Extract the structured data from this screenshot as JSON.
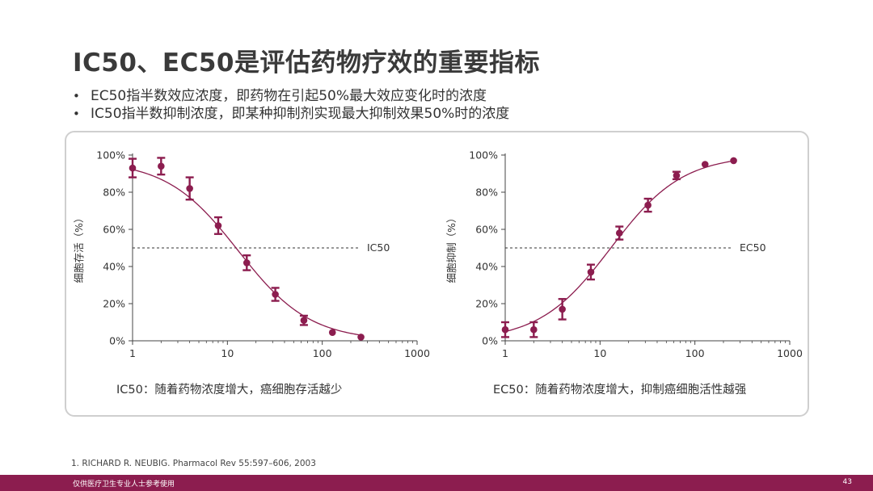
{
  "slide": {
    "title": "IC50、EC50是评估药物疗效的重要指标",
    "bullets": [
      "EC50指半数效应浓度，即药物在引起50%最大效应变化时的浓度",
      "IC50指半数抑制浓度，即某种抑制剂实现最大抑制效果50%时的浓度"
    ],
    "bullet_symbol": "•",
    "reference": "1.   RICHARD R. NEUBIG. Pharmacol Rev 55:597–606, 2003",
    "footer": "仅供医疗卫生专业人士参考使用",
    "page_number": "43"
  },
  "colors": {
    "accent": "#8c1d4f",
    "curve": "#8c1d4f",
    "frame": "#cfcfcf",
    "axis": "#444444"
  },
  "chart_data": [
    {
      "type": "scatter",
      "xscale": "log",
      "xlim": [
        1,
        1000
      ],
      "ylim": [
        0,
        100
      ],
      "xticks": [
        1,
        10,
        100,
        1000
      ],
      "xticklabels": [
        "1",
        "10",
        "100",
        "1000"
      ],
      "yticks": [
        0,
        20,
        40,
        60,
        80,
        100
      ],
      "yticklabels": [
        "0%",
        "20%",
        "40%",
        "60%",
        "80%",
        "100%"
      ],
      "ylabel": "细胞存活（%）",
      "reference_line": {
        "y": 50,
        "label": "IC50",
        "style": "dashed"
      },
      "caption": "IC50：随着药物浓度增大，癌细胞存活越少",
      "curve": {
        "model": "hill",
        "top": 97,
        "bottom": 0,
        "ec50": 13,
        "hill": -1.15
      },
      "series": [
        {
          "x": [
            1,
            2,
            4,
            8,
            16,
            32,
            64,
            128,
            256
          ],
          "y": [
            93,
            94,
            82,
            62,
            42,
            25,
            11,
            4.5,
            2
          ],
          "err": [
            5,
            4.5,
            6,
            4.5,
            4,
            3.5,
            2.5,
            0,
            0
          ]
        }
      ]
    },
    {
      "type": "scatter",
      "xscale": "log",
      "xlim": [
        1,
        1000
      ],
      "ylim": [
        0,
        100
      ],
      "xticks": [
        1,
        10,
        100,
        1000
      ],
      "xticklabels": [
        "1",
        "10",
        "100",
        "1000"
      ],
      "yticks": [
        0,
        20,
        40,
        60,
        80,
        100
      ],
      "yticklabels": [
        "0%",
        "20%",
        "40%",
        "60%",
        "80%",
        "100%"
      ],
      "ylabel": "细胞抑制（%）",
      "reference_line": {
        "y": 50,
        "label": "EC50",
        "style": "dashed"
      },
      "caption": "EC50：随着药物浓度增大，抑制癌细胞活性越强",
      "curve": {
        "model": "hill",
        "top": 100,
        "bottom": 0,
        "ec50": 13,
        "hill": 1.15
      },
      "series": [
        {
          "x": [
            1,
            2,
            4,
            8,
            16,
            32,
            64,
            128,
            256
          ],
          "y": [
            6,
            6,
            17,
            37,
            58,
            73,
            89,
            95,
            97
          ],
          "err": [
            4,
            4,
            5.5,
            4,
            3.5,
            3.5,
            2,
            0,
            0
          ]
        }
      ]
    }
  ]
}
